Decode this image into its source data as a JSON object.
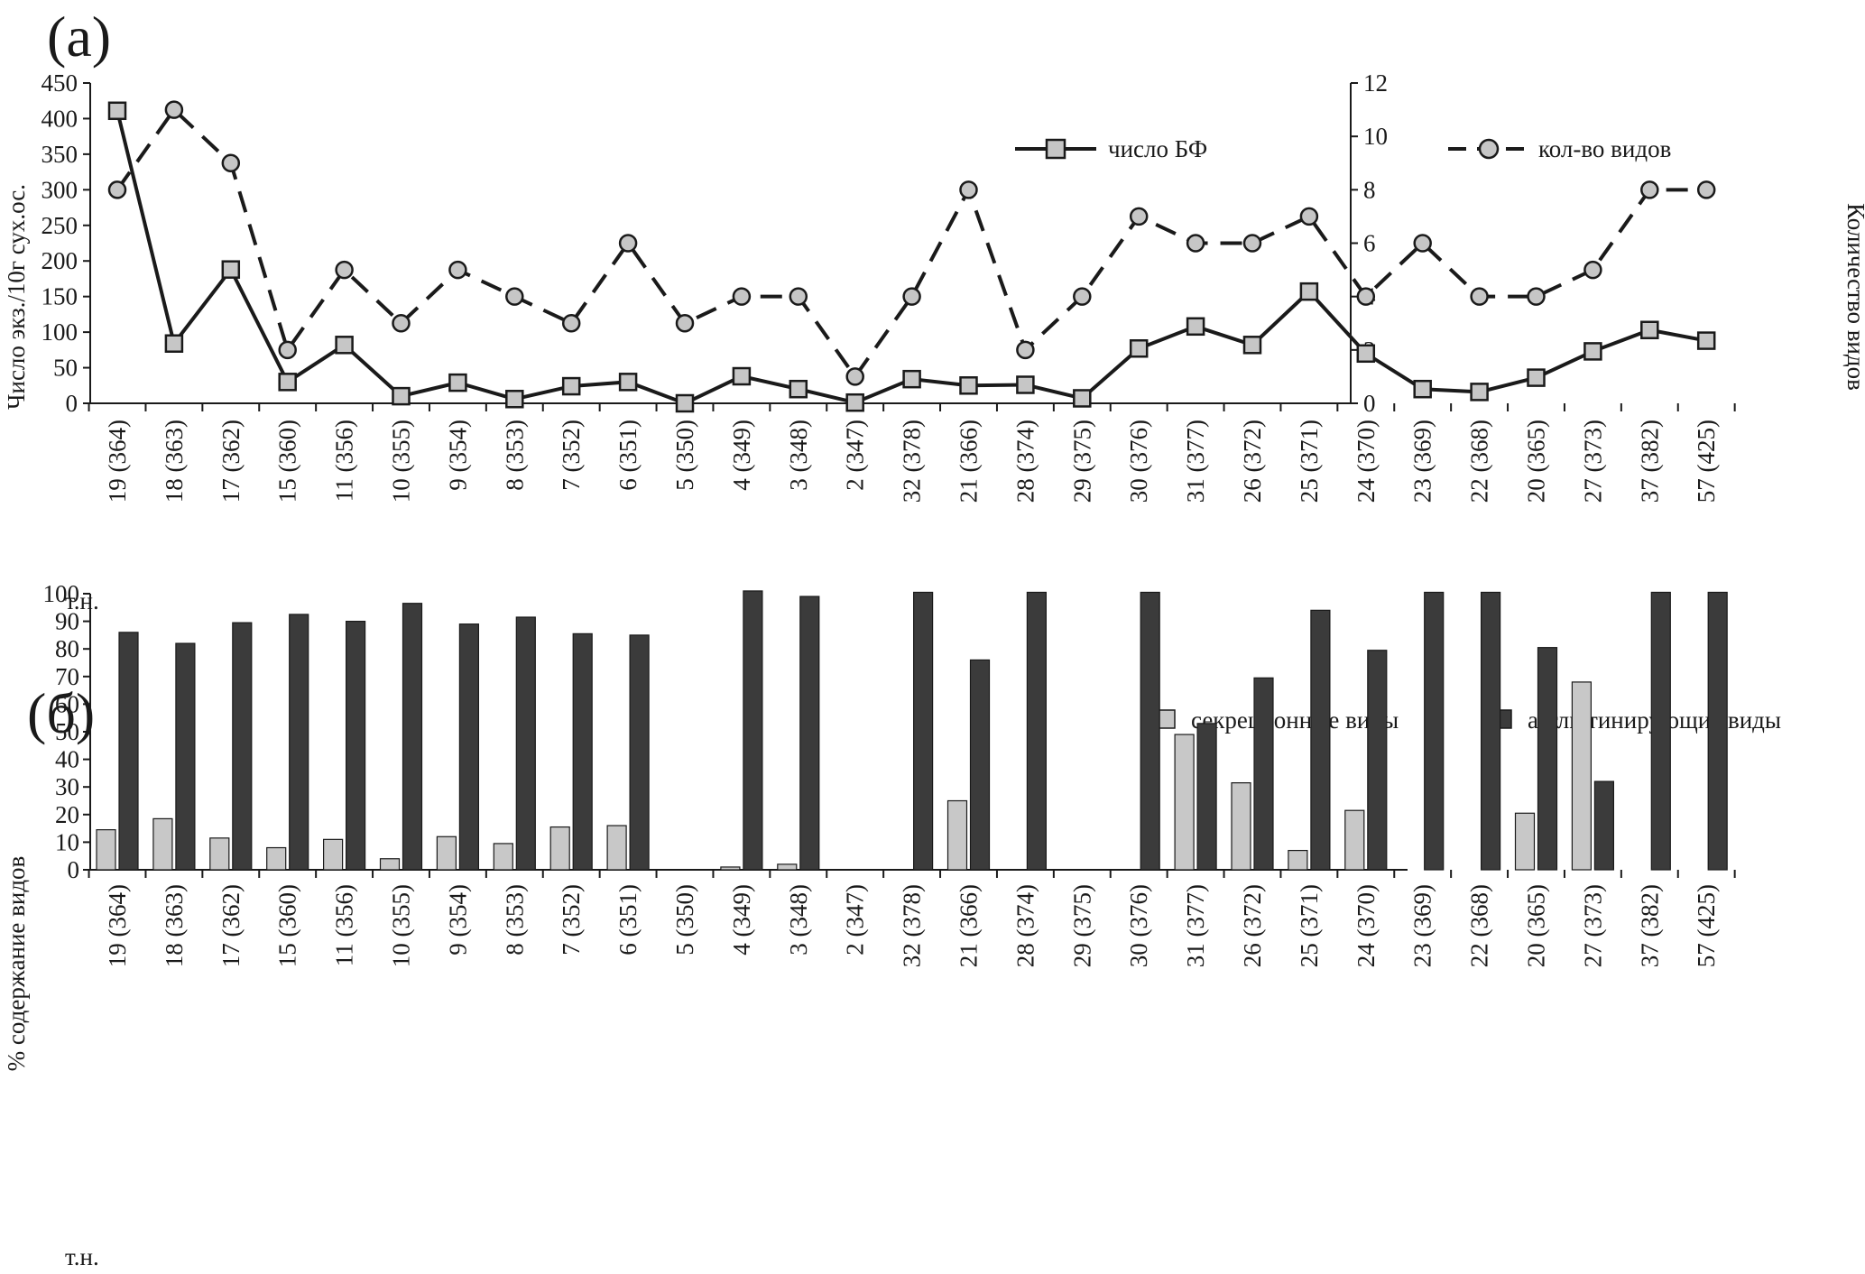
{
  "panel_a_label": "(a)",
  "panel_b_label": "(б)",
  "station_label": "т.н.",
  "categories": [
    "19 (364)",
    "18 (363)",
    "17 (362)",
    "15 (360)",
    "11 (356)",
    "10 (355)",
    "9 (354)",
    "8 (353)",
    "7 (352)",
    "6 (351)",
    "5 (350)",
    "4 (349)",
    "3 (348)",
    "2 (347)",
    "32 (378)",
    "21 (366)",
    "28 (374)",
    "29 (375)",
    "30 (376)",
    "31 (377)",
    "26 (372)",
    "25 (371)",
    "24 (370)",
    "23 (369)",
    "22 (368)",
    "20 (365)",
    "27 (373)",
    "37 (382)",
    "57 (425)"
  ],
  "chart_data": [
    {
      "type": "line",
      "ylabel": "Число экз./10г сух.ос.",
      "y2label": "Количество видов",
      "ylim": [
        0,
        450
      ],
      "yticks": [
        0,
        50,
        100,
        150,
        200,
        250,
        300,
        350,
        400,
        450
      ],
      "y2lim": [
        0,
        12
      ],
      "y2ticks": [
        0,
        2,
        4,
        6,
        8,
        10,
        12
      ],
      "legend_position": "top-right",
      "series": [
        {
          "name": "число БФ",
          "axis": "left",
          "style": "solid",
          "marker": "square",
          "values": [
            411,
            84,
            188,
            30,
            82,
            10,
            29,
            6,
            24,
            30,
            0,
            38,
            20,
            1,
            34,
            25,
            26,
            7,
            77,
            108,
            82,
            157,
            70,
            20,
            16,
            36,
            73,
            103,
            88
          ]
        },
        {
          "name": "кол-во видов",
          "axis": "right",
          "style": "dashed",
          "marker": "circle",
          "values": [
            8,
            11,
            9,
            2,
            5,
            3,
            5,
            4,
            3,
            6,
            3,
            4,
            4,
            1,
            4,
            8,
            2,
            4,
            7,
            6,
            6,
            7,
            4,
            6,
            4,
            4,
            5,
            8,
            8
          ]
        }
      ]
    },
    {
      "type": "bar",
      "ylabel": "% содержание видов",
      "ylim": [
        0,
        100
      ],
      "yticks": [
        0,
        10,
        20,
        30,
        40,
        50,
        60,
        70,
        80,
        90,
        100
      ],
      "legend_position": "top-right",
      "series": [
        {
          "name": "секреционные виды",
          "color": "#c8c8c8",
          "values": [
            14.5,
            18.5,
            11.5,
            8,
            11,
            4,
            12,
            9.5,
            15.5,
            16,
            0,
            1,
            2,
            0,
            0,
            25,
            0,
            0,
            0,
            49,
            31.5,
            7,
            21.5,
            0,
            0,
            20.5,
            68,
            0,
            0
          ]
        },
        {
          "name": "агглютинирующие виды",
          "color": "#3b3b3b",
          "values": [
            86,
            82,
            89.5,
            92.5,
            90,
            96.5,
            89,
            91.5,
            85.5,
            85,
            0,
            101,
            99,
            0,
            100.5,
            76,
            100.5,
            0,
            100.5,
            53,
            69.5,
            94,
            79.5,
            100.5,
            100.5,
            80.5,
            32,
            100.5,
            100.5
          ]
        }
      ]
    }
  ]
}
